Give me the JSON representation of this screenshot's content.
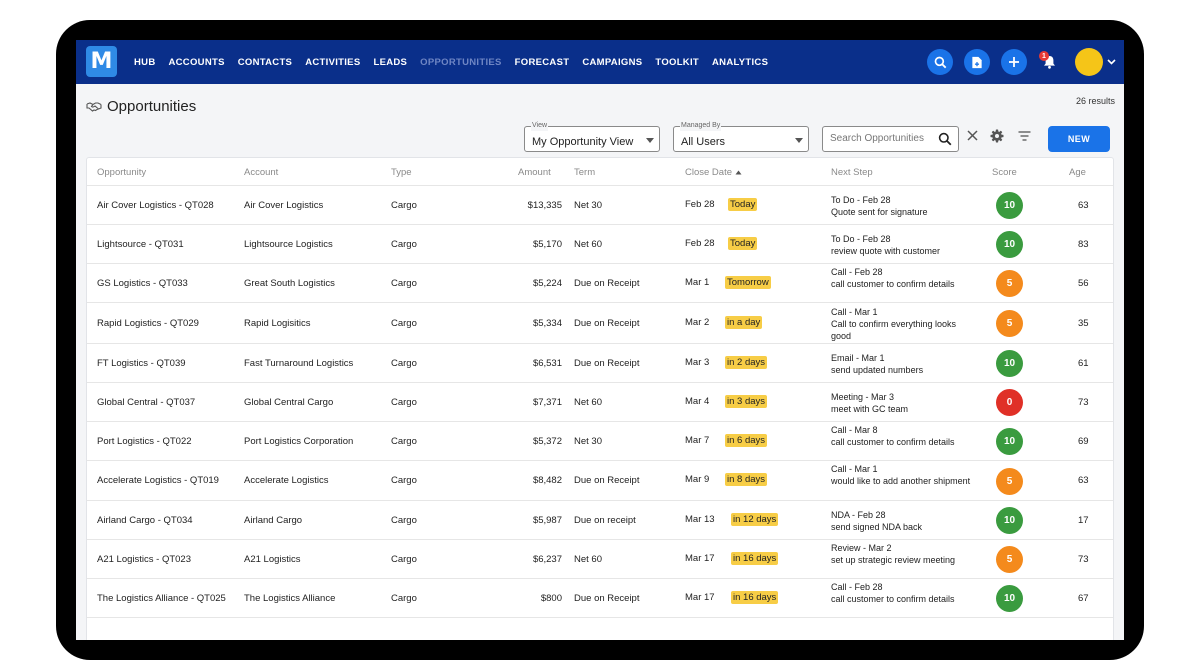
{
  "nav": {
    "logo_letter": "M",
    "items": [
      "HUB",
      "ACCOUNTS",
      "CONTACTS",
      "ACTIVITIES",
      "LEADS",
      "OPPORTUNITIES",
      "FORECAST",
      "CAMPAIGNS",
      "TOOLKIT",
      "ANALYTICS"
    ],
    "active_item": "OPPORTUNITIES",
    "notification_count": "1",
    "colors": {
      "bar": "#0a2f8a",
      "button": "#1a73e8",
      "avatar": "#f5c518"
    }
  },
  "header": {
    "title": "Opportunities",
    "results": "26 results"
  },
  "filters": {
    "view_legend": "View",
    "view_value": "My Opportunity View",
    "managed_legend": "Managed By",
    "managed_value": "All Users",
    "search_placeholder": "Search Opportunities",
    "new_label": "NEW"
  },
  "table": {
    "columns": {
      "opportunity": "Opportunity",
      "account": "Account",
      "type": "Type",
      "amount": "Amount",
      "term": "Term",
      "close_date": "Close Date",
      "next_step": "Next Step",
      "score": "Score",
      "age": "Age"
    },
    "rows": [
      {
        "opportunity": "Air Cover Logistics - QT028",
        "account": "Air Cover Logistics",
        "type": "Cargo",
        "amount": "$13,335",
        "term": "Net 30",
        "close_date": "Feb 28",
        "due": "Today",
        "step_title": "To Do - Feb 28",
        "step_detail": "Quote sent for signature",
        "score": "10",
        "age": "63"
      },
      {
        "opportunity": "Lightsource - QT031",
        "account": "Lightsource Logistics",
        "type": "Cargo",
        "amount": "$5,170",
        "term": "Net 60",
        "close_date": "Feb 28",
        "due": "Today",
        "step_title": "To Do - Feb 28",
        "step_detail": "review quote with customer",
        "score": "10",
        "age": "83"
      },
      {
        "opportunity": "GS Logistics - QT033",
        "account": "Great South Logistics",
        "type": "Cargo",
        "amount": "$5,224",
        "term": "Due on Receipt",
        "close_date": "Mar 1",
        "due": "Tomorrow",
        "step_title": "Call - Feb 28",
        "step_detail": "call customer to confirm details",
        "score": "5",
        "age": "56"
      },
      {
        "opportunity": "Rapid Logistics - QT029",
        "account": "Rapid Logisitics",
        "type": "Cargo",
        "amount": "$5,334",
        "term": "Due on Receipt",
        "close_date": "Mar 2",
        "due": "in a day",
        "step_title": "Call - Mar 1",
        "step_detail": "Call to confirm everything looks good",
        "score": "5",
        "age": "35"
      },
      {
        "opportunity": "FT Logistics - QT039",
        "account": "Fast Turnaround Logistics",
        "type": "Cargo",
        "amount": "$6,531",
        "term": "Due on Receipt",
        "close_date": "Mar 3",
        "due": "in 2 days",
        "step_title": "Email - Mar 1",
        "step_detail": "send updated numbers",
        "score": "10",
        "age": "61"
      },
      {
        "opportunity": "Global Central - QT037",
        "account": "Global Central Cargo",
        "type": "Cargo",
        "amount": "$7,371",
        "term": "Net 60",
        "close_date": "Mar 4",
        "due": "in 3 days",
        "step_title": "Meeting - Mar 3",
        "step_detail": "meet with GC team",
        "score": "0",
        "age": "73"
      },
      {
        "opportunity": "Port Logistics - QT022",
        "account": "Port Logistics Corporation",
        "type": "Cargo",
        "amount": "$5,372",
        "term": "Net 30",
        "close_date": "Mar 7",
        "due": "in 6 days",
        "step_title": "Call - Mar 8",
        "step_detail": "call customer to confirm details",
        "score": "10",
        "age": "69"
      },
      {
        "opportunity": "Accelerate Logistics - QT019",
        "account": "Accelerate Logistics",
        "type": "Cargo",
        "amount": "$8,482",
        "term": "Due on Receipt",
        "close_date": "Mar 9",
        "due": "in 8 days",
        "step_title": "Call - Mar 1",
        "step_detail": "would like to add another shipment",
        "score": "5",
        "age": "63"
      },
      {
        "opportunity": "Airland Cargo - QT034",
        "account": "Airland Cargo",
        "type": "Cargo",
        "amount": "$5,987",
        "term": "Due on receipt",
        "close_date": "Mar 13",
        "due": "in 12 days",
        "step_title": "NDA - Feb 28",
        "step_detail": "send signed NDA back",
        "score": "10",
        "age": "17"
      },
      {
        "opportunity": "A21 Logistics - QT023",
        "account": "A21 Logistics",
        "type": "Cargo",
        "amount": "$6,237",
        "term": "Net 60",
        "close_date": "Mar 17",
        "due": "in 16 days",
        "step_title": "Review - Mar 2",
        "step_detail": "set up strategic review meeting",
        "score": "5",
        "age": "73"
      },
      {
        "opportunity": "The Logistics Alliance - QT025",
        "account": "The Logistics Alliance",
        "type": "Cargo",
        "amount": "$800",
        "term": "Due on Receipt",
        "close_date": "Mar 17",
        "due": "in 16 days",
        "step_title": "Call - Feb 28",
        "step_detail": "call customer to confirm details",
        "score": "10",
        "age": "67"
      }
    ],
    "score_colors": {
      "10": "#3a9b3f",
      "5": "#f48a1c",
      "0": "#e03027"
    },
    "due_color": "#f7cd46"
  }
}
